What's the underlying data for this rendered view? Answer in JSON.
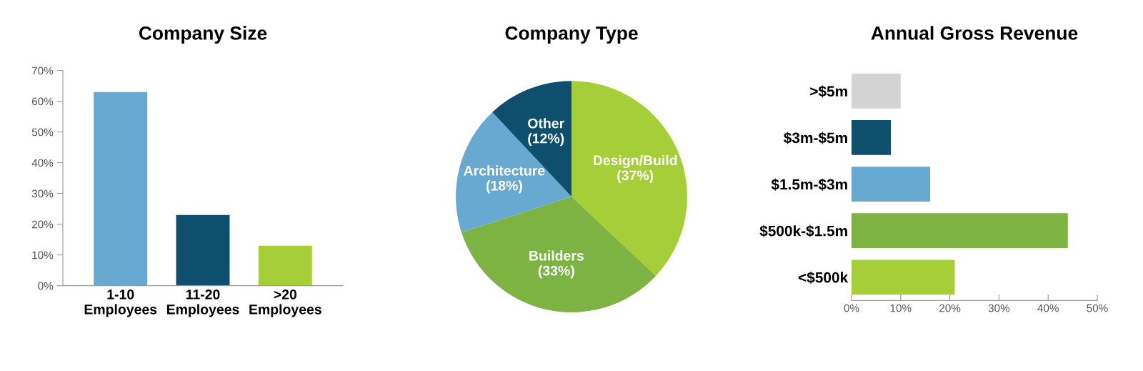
{
  "chart_data": [
    {
      "type": "bar",
      "title": "Company Size",
      "categories": [
        "1-10\nEmployees",
        "11-20\nEmployees",
        ">20\nEmployees"
      ],
      "values": [
        63,
        23,
        13
      ],
      "colors": [
        "#67a9d0",
        "#0f4f6e",
        "#a6ce39"
      ],
      "ylim": [
        0,
        70
      ],
      "yticks": [
        {
          "value": 0,
          "label": "0%"
        },
        {
          "value": 10,
          "label": "10%"
        },
        {
          "value": 20,
          "label": "20%"
        },
        {
          "value": 30,
          "label": "30%"
        },
        {
          "value": 40,
          "label": "40%"
        },
        {
          "value": 50,
          "label": "50%"
        },
        {
          "value": 60,
          "label": "60%"
        },
        {
          "value": 70,
          "label": "70%"
        }
      ],
      "grid": false
    },
    {
      "type": "pie",
      "title": "Company Type",
      "categories": [
        "Design/Build\n(37%)",
        "Builders\n(33%)",
        "Architecture\n(18%)",
        "Other\n(12%)"
      ],
      "values": [
        37,
        33,
        18,
        12
      ],
      "colors": [
        "#a6ce39",
        "#7cb342",
        "#67a9d0",
        "#0f4f6e"
      ]
    },
    {
      "type": "bar",
      "orientation": "horizontal",
      "title": "Annual Gross Revenue",
      "categories": [
        ">$5m",
        "$3m-$5m",
        "$1.5m-$3m",
        "$500k-$1.5m",
        "<$500k"
      ],
      "values": [
        10,
        8,
        16,
        44,
        21
      ],
      "colors": [
        "#d3d3d3",
        "#0f4f6e",
        "#67a9d0",
        "#7cb342",
        "#a6ce39"
      ],
      "xlim": [
        0,
        50
      ],
      "xticks": [
        {
          "value": 0,
          "label": "0%"
        },
        {
          "value": 10,
          "label": "10%"
        },
        {
          "value": 20,
          "label": "20%"
        },
        {
          "value": 30,
          "label": "30%"
        },
        {
          "value": 40,
          "label": "40%"
        },
        {
          "value": 50,
          "label": "50%"
        }
      ],
      "grid": false
    }
  ]
}
